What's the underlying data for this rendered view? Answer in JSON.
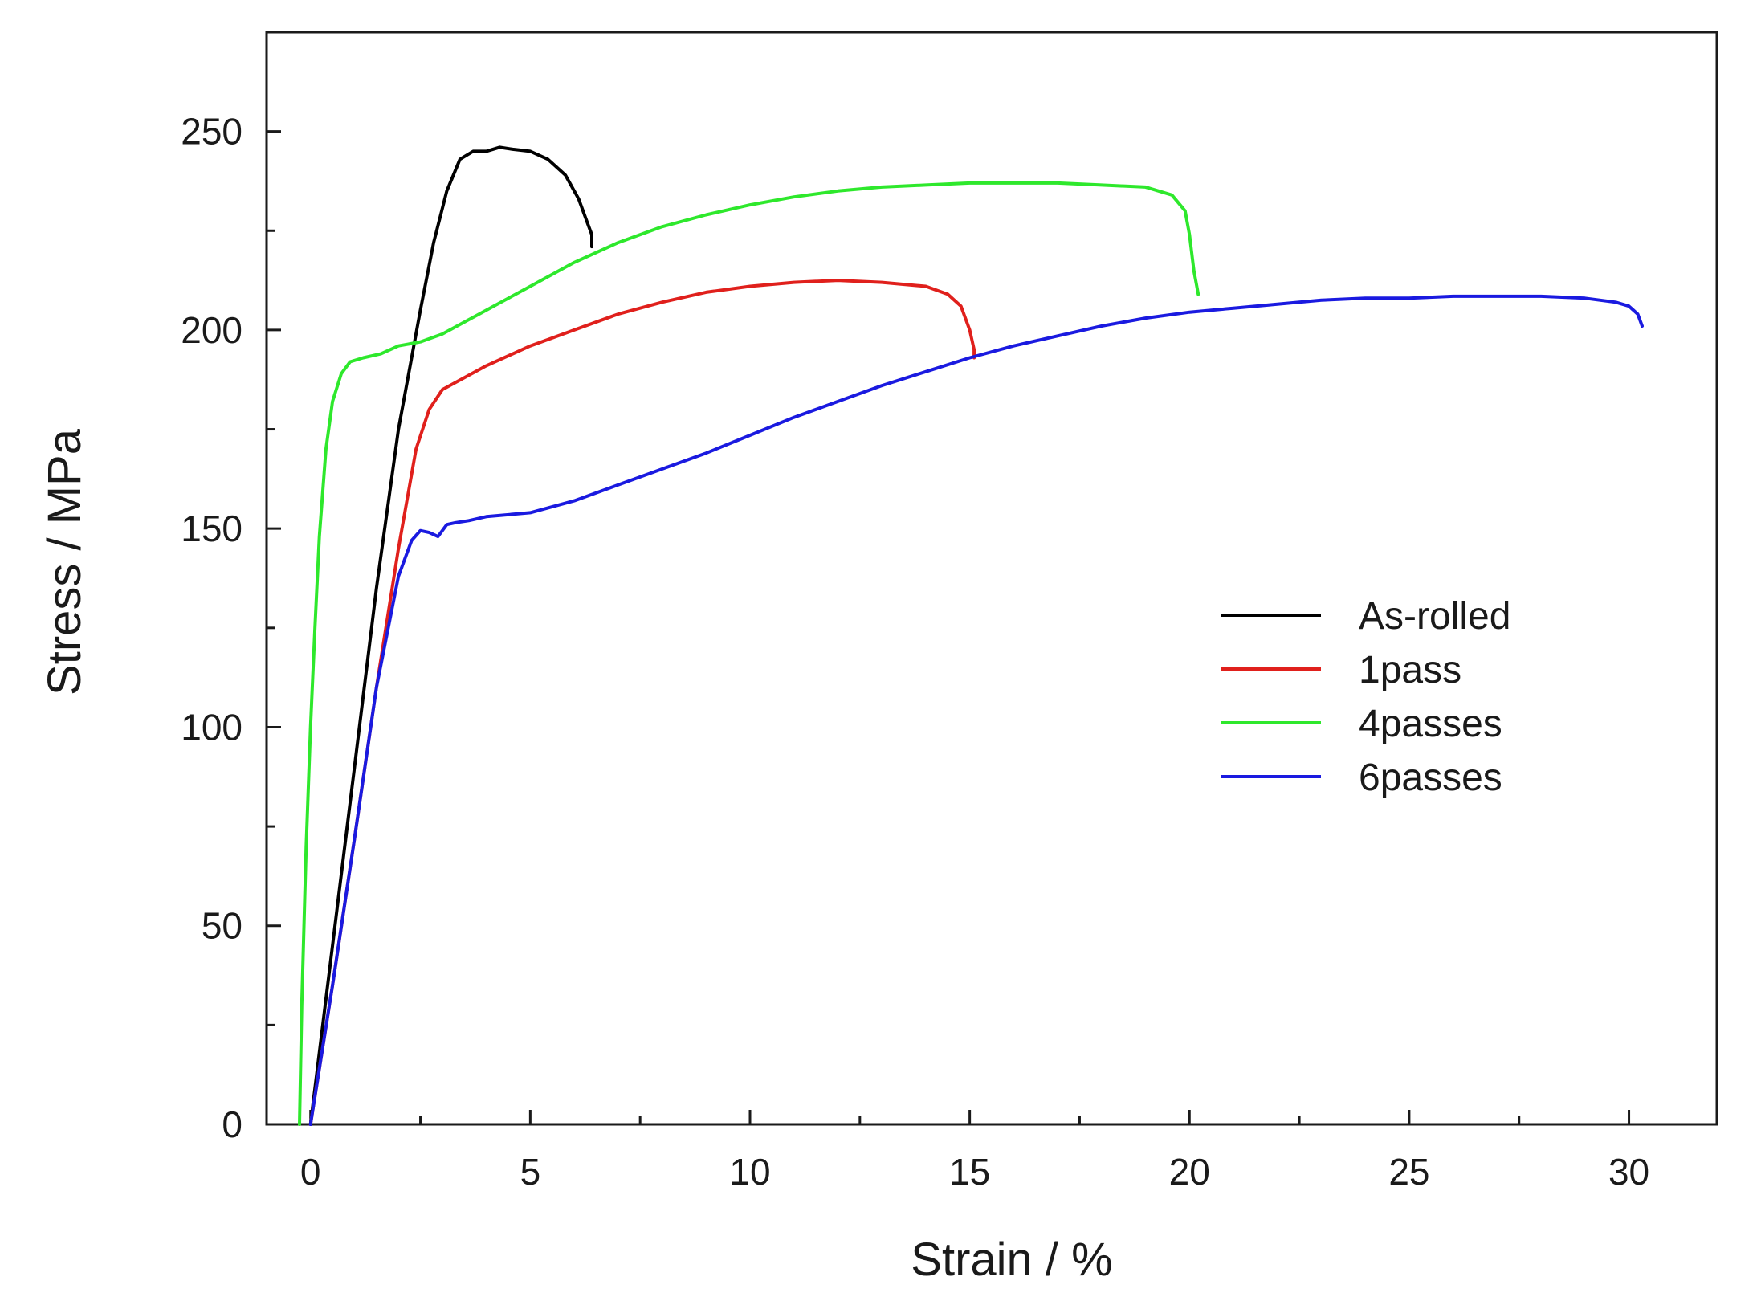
{
  "chart_data": {
    "type": "line",
    "title": "",
    "xlabel": "Strain / %",
    "ylabel": "Stress / MPa",
    "xlim": [
      -1,
      32
    ],
    "ylim": [
      0,
      275
    ],
    "xticks": [
      0,
      5,
      10,
      15,
      20,
      25,
      30
    ],
    "xtick_labels": [
      "0",
      "5",
      "10",
      "15",
      "20",
      "25",
      "30"
    ],
    "yticks": [
      0,
      50,
      100,
      150,
      200,
      250
    ],
    "ytick_labels": [
      "0",
      "50",
      "100",
      "150",
      "200",
      "250"
    ],
    "grid": false,
    "legend_position": "center-right",
    "series": [
      {
        "name": "As-rolled",
        "color": "#000000",
        "x": [
          0,
          0.5,
          1.0,
          1.5,
          2.0,
          2.5,
          2.8,
          3.1,
          3.4,
          3.7,
          4.0,
          4.3,
          4.6,
          5.0,
          5.4,
          5.8,
          6.1,
          6.3,
          6.4,
          6.4
        ],
        "y": [
          0,
          45,
          90,
          135,
          175,
          205,
          222,
          235,
          243,
          245,
          245,
          246,
          245.5,
          245,
          243,
          239,
          233,
          227,
          224,
          221
        ]
      },
      {
        "name": "1pass",
        "color": "#e0201c",
        "x": [
          0,
          0.5,
          1.0,
          1.5,
          2.0,
          2.4,
          2.7,
          3.0,
          3.5,
          4.0,
          5.0,
          6.0,
          7.0,
          8.0,
          9.0,
          10.0,
          11.0,
          12.0,
          13.0,
          14.0,
          14.5,
          14.8,
          15.0,
          15.1,
          15.1
        ],
        "y": [
          0,
          35,
          72,
          110,
          145,
          170,
          180,
          185,
          188,
          191,
          196,
          200,
          204,
          207,
          209.5,
          211,
          212,
          212.5,
          212,
          211,
          209,
          206,
          200,
          195,
          193
        ]
      },
      {
        "name": "4passes",
        "color": "#2ee82c",
        "x": [
          -0.25,
          -0.2,
          -0.1,
          0.0,
          0.1,
          0.2,
          0.35,
          0.5,
          0.7,
          0.9,
          1.2,
          1.6,
          2.0,
          2.5,
          3.0,
          4.0,
          5.0,
          6.0,
          7.0,
          8.0,
          9.0,
          10.0,
          11.0,
          12.0,
          13.0,
          14.0,
          15.0,
          16.0,
          17.0,
          18.0,
          19.0,
          19.6,
          19.9,
          20.0,
          20.1,
          20.2
        ],
        "y": [
          0,
          30,
          70,
          100,
          125,
          148,
          170,
          182,
          189,
          192,
          193,
          194,
          196,
          197,
          199,
          205,
          211,
          217,
          222,
          226,
          229,
          231.5,
          233.5,
          235,
          236,
          236.5,
          237,
          237,
          237,
          236.5,
          236,
          234,
          230,
          224,
          215,
          209
        ]
      },
      {
        "name": "6passes",
        "color": "#1a1ae0",
        "x": [
          0,
          0.5,
          1.0,
          1.5,
          2.0,
          2.3,
          2.5,
          2.7,
          2.9,
          3.1,
          3.3,
          3.6,
          4.0,
          5.0,
          6.0,
          7.0,
          8.0,
          9.0,
          10.0,
          11.0,
          12.0,
          13.0,
          14.0,
          15.0,
          16.0,
          17.0,
          18.0,
          19.0,
          20.0,
          21.0,
          22.0,
          23.0,
          24.0,
          25.0,
          26.0,
          27.0,
          28.0,
          29.0,
          29.7,
          30.0,
          30.2,
          30.3
        ],
        "y": [
          0,
          35,
          72,
          110,
          138,
          147,
          149.5,
          149,
          148,
          151,
          151.5,
          152,
          153,
          154,
          157,
          161,
          165,
          169,
          173.5,
          178,
          182,
          186,
          189.5,
          193,
          196,
          198.5,
          201,
          203,
          204.5,
          205.5,
          206.5,
          207.5,
          208,
          208,
          208.5,
          208.5,
          208.5,
          208,
          207,
          206,
          204,
          201
        ]
      }
    ]
  }
}
